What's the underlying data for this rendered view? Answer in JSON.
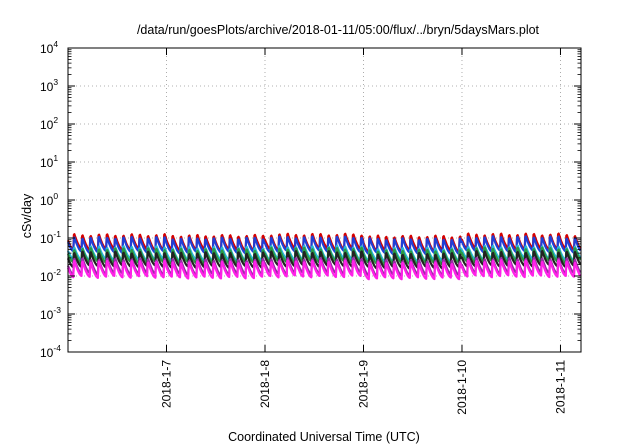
{
  "chart_data": {
    "type": "line",
    "title": "/data/run/goesPlots/archive/2018-01-11/05:00/flux/../bryn/5daysMars.plot",
    "xlabel": "Coordinated Universal Time (UTC)",
    "ylabel": "cSv/day",
    "yscale": "log",
    "ylim": [
      0.0001,
      10000
    ],
    "xlim": [
      "2018-01-06 00:00",
      "2018-01-11 05:00"
    ],
    "grid": "dotted, on major ticks",
    "legend": "none",
    "y_ticks": [
      {
        "base": "10",
        "exp": "-4"
      },
      {
        "base": "10",
        "exp": "-3"
      },
      {
        "base": "10",
        "exp": "-2"
      },
      {
        "base": "10",
        "exp": "-1"
      },
      {
        "base": "10",
        "exp": "0"
      },
      {
        "base": "10",
        "exp": "1"
      },
      {
        "base": "10",
        "exp": "2"
      },
      {
        "base": "10",
        "exp": "3"
      },
      {
        "base": "10",
        "exp": "4"
      }
    ],
    "x_ticks": [
      "2018-1-7",
      "2018-1-8",
      "2018-1-9",
      "2018-1-10",
      "2018-1-11"
    ],
    "cycles_per_day": 12,
    "series": [
      {
        "color": "#d40000",
        "peak": 0.13,
        "trough": 0.05
      },
      {
        "color": "#1f3fd6",
        "peak": 0.11,
        "trough": 0.043
      },
      {
        "color": "#27b6d8",
        "peak": 0.062,
        "trough": 0.027
      },
      {
        "color": "#2a9a43",
        "peak": 0.055,
        "trough": 0.023
      },
      {
        "color": "#222222",
        "peak": 0.045,
        "trough": 0.018
      },
      {
        "color": "#9a2da6",
        "peak": 0.03,
        "trough": 0.0115
      },
      {
        "color": "#ff21e8",
        "peak": 0.026,
        "trough": 0.0095
      }
    ]
  }
}
